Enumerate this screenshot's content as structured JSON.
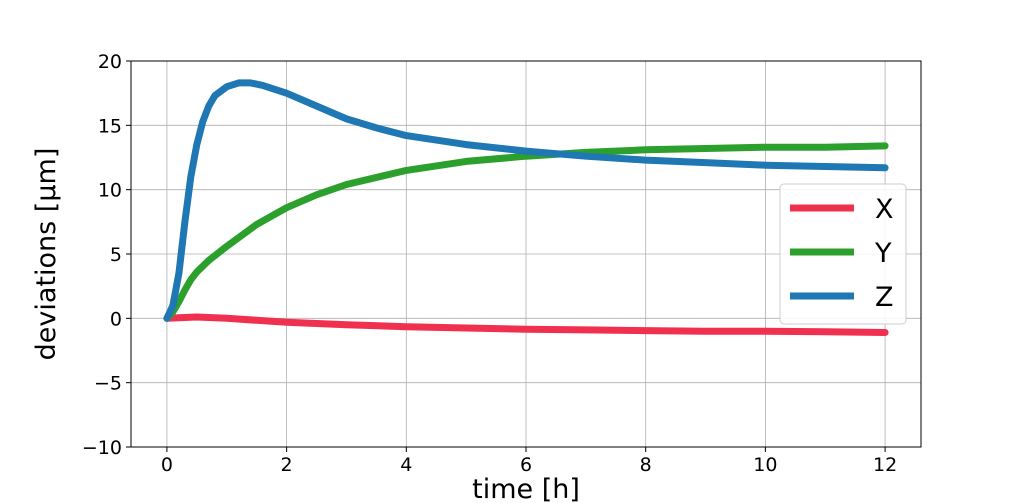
{
  "chart_data": {
    "type": "line",
    "title": "",
    "xlabel": "time [h]",
    "ylabel": "deviations [μm]",
    "xlim": [
      -0.6,
      12.6
    ],
    "ylim": [
      -10,
      20
    ],
    "xticks": [
      0,
      2,
      4,
      6,
      8,
      10,
      12
    ],
    "yticks": [
      -10,
      -5,
      0,
      5,
      10,
      15,
      20
    ],
    "xtick_labels": [
      "0",
      "2",
      "4",
      "6",
      "8",
      "10",
      "12"
    ],
    "ytick_labels": [
      "−10",
      "−5",
      "0",
      "5",
      "10",
      "15",
      "20"
    ],
    "grid": true,
    "legend_position": "center-right",
    "series": [
      {
        "name": "X",
        "color": "#f0304f",
        "x": [
          0,
          0.2,
          0.5,
          0.8,
          1,
          1.5,
          2,
          3,
          4,
          5,
          6,
          7,
          8,
          9,
          10,
          11,
          12
        ],
        "y": [
          0,
          0.05,
          0.1,
          0.05,
          0,
          -0.15,
          -0.3,
          -0.5,
          -0.65,
          -0.75,
          -0.85,
          -0.9,
          -0.95,
          -1.0,
          -1.0,
          -1.05,
          -1.1
        ]
      },
      {
        "name": "Y",
        "color": "#2ca02c",
        "x": [
          0,
          0.1,
          0.2,
          0.3,
          0.4,
          0.5,
          0.7,
          1,
          1.5,
          2,
          2.5,
          3,
          4,
          5,
          6,
          7,
          8,
          9,
          10,
          11,
          12
        ],
        "y": [
          0,
          0.5,
          1.3,
          2.2,
          3.0,
          3.6,
          4.5,
          5.6,
          7.3,
          8.6,
          9.6,
          10.4,
          11.5,
          12.2,
          12.6,
          12.9,
          13.1,
          13.2,
          13.3,
          13.3,
          13.4
        ]
      },
      {
        "name": "Z",
        "color": "#1f77b4",
        "x": [
          0,
          0.1,
          0.2,
          0.3,
          0.4,
          0.5,
          0.6,
          0.7,
          0.8,
          1.0,
          1.2,
          1.4,
          1.6,
          2,
          2.5,
          3,
          3.5,
          4,
          5,
          6,
          7,
          8,
          9,
          10,
          11,
          12
        ],
        "y": [
          0,
          1.0,
          3.5,
          7.5,
          11.0,
          13.5,
          15.3,
          16.5,
          17.3,
          18.0,
          18.3,
          18.3,
          18.1,
          17.5,
          16.5,
          15.5,
          14.8,
          14.2,
          13.5,
          13.0,
          12.6,
          12.3,
          12.1,
          11.9,
          11.8,
          11.7
        ]
      }
    ]
  }
}
